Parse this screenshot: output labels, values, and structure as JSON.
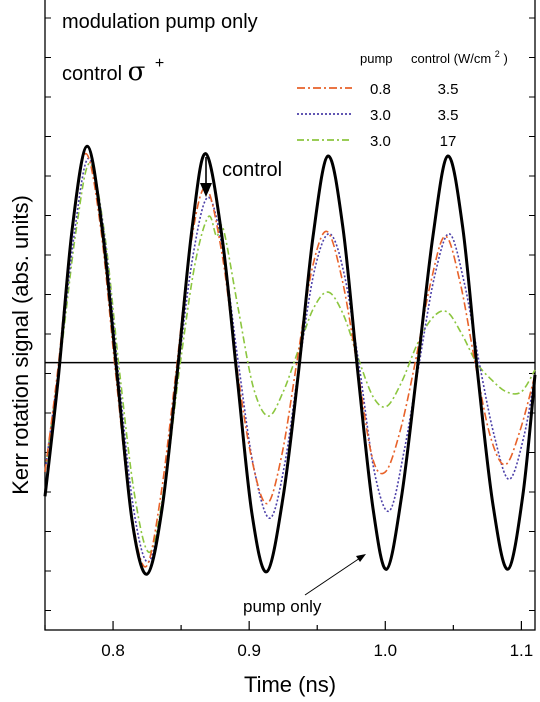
{
  "chart_data": {
    "type": "line",
    "xlabel": "Time (ns)",
    "ylabel": "Kerr rotation signal (abs. units)",
    "xlim": [
      0.75,
      1.11
    ],
    "ylim": [
      -1.1,
      1.5
    ],
    "x_ticks": [
      0.8,
      0.9,
      1.0,
      1.1
    ],
    "x_tick_labels": [
      "0.8",
      "0.9",
      "1.0",
      "1.1"
    ],
    "grid": false,
    "baseline_y": 0,
    "annotations": {
      "line1": "modulation pump  only",
      "line2_prefix": "control ",
      "sigma": "σ",
      "plus": "+",
      "control_arrow": "control",
      "pump_only": "pump only"
    },
    "legend": {
      "placement": "top-right",
      "header_pump": "pump",
      "header_control": "control (W/cm",
      "header_sup": "2",
      "header_close": ")",
      "entries": [
        {
          "pump": "0.8",
          "control": "3.5",
          "color": "#e8622a",
          "dash": "8,3,2,3"
        },
        {
          "pump": "3.0",
          "control": "3.5",
          "color": "#4b3fa8",
          "dash": "2,2"
        },
        {
          "pump": "3.0",
          "control": "17",
          "color": "#8cc63f",
          "dash": "7,3,2,3"
        }
      ]
    },
    "series": [
      {
        "name": "pump only",
        "color": "#000000",
        "style": "solid",
        "points": [
          [
            0.75,
            -0.55
          ],
          [
            0.76,
            -0.05
          ],
          [
            0.77,
            0.55
          ],
          [
            0.781,
            0.89
          ],
          [
            0.792,
            0.55
          ],
          [
            0.803,
            -0.05
          ],
          [
            0.814,
            -0.65
          ],
          [
            0.825,
            -0.87
          ],
          [
            0.836,
            -0.6
          ],
          [
            0.847,
            -0.05
          ],
          [
            0.858,
            0.55
          ],
          [
            0.868,
            0.86
          ],
          [
            0.88,
            0.52
          ],
          [
            0.891,
            -0.05
          ],
          [
            0.902,
            -0.62
          ],
          [
            0.913,
            -0.86
          ],
          [
            0.925,
            -0.55
          ],
          [
            0.936,
            -0.05
          ],
          [
            0.947,
            0.52
          ],
          [
            0.958,
            0.85
          ],
          [
            0.969,
            0.55
          ],
          [
            0.98,
            -0.05
          ],
          [
            0.991,
            -0.6
          ],
          [
            1.001,
            -0.85
          ],
          [
            1.012,
            -0.55
          ],
          [
            1.023,
            -0.05
          ],
          [
            1.035,
            0.52
          ],
          [
            1.046,
            0.85
          ],
          [
            1.057,
            0.55
          ],
          [
            1.068,
            -0.05
          ],
          [
            1.079,
            -0.58
          ],
          [
            1.09,
            -0.85
          ],
          [
            1.101,
            -0.55
          ],
          [
            1.11,
            -0.05
          ]
        ]
      },
      {
        "name": "",
        "color": "#e8622a",
        "style": "dashdot",
        "points": [
          [
            0.75,
            -0.45
          ],
          [
            0.76,
            0.0
          ],
          [
            0.77,
            0.55
          ],
          [
            0.78,
            0.86
          ],
          [
            0.791,
            0.55
          ],
          [
            0.802,
            -0.05
          ],
          [
            0.813,
            -0.6
          ],
          [
            0.824,
            -0.84
          ],
          [
            0.835,
            -0.55
          ],
          [
            0.846,
            -0.05
          ],
          [
            0.857,
            0.48
          ],
          [
            0.868,
            0.72
          ],
          [
            0.88,
            0.45
          ],
          [
            0.891,
            -0.02
          ],
          [
            0.902,
            -0.4
          ],
          [
            0.913,
            -0.58
          ],
          [
            0.924,
            -0.38
          ],
          [
            0.935,
            0.0
          ],
          [
            0.946,
            0.38
          ],
          [
            0.957,
            0.54
          ],
          [
            0.968,
            0.35
          ],
          [
            0.979,
            0.0
          ],
          [
            0.99,
            -0.38
          ],
          [
            1.0,
            -0.45
          ],
          [
            1.011,
            -0.28
          ],
          [
            1.022,
            0.0
          ],
          [
            1.033,
            0.32
          ],
          [
            1.044,
            0.52
          ],
          [
            1.055,
            0.33
          ],
          [
            1.066,
            0.0
          ],
          [
            1.077,
            -0.3
          ],
          [
            1.088,
            -0.42
          ],
          [
            1.099,
            -0.28
          ],
          [
            1.11,
            -0.05
          ]
        ]
      },
      {
        "name": "",
        "color": "#4b3fa8",
        "style": "dotted",
        "points": [
          [
            0.75,
            -0.45
          ],
          [
            0.761,
            0.02
          ],
          [
            0.772,
            0.55
          ],
          [
            0.782,
            0.84
          ],
          [
            0.793,
            0.55
          ],
          [
            0.804,
            -0.05
          ],
          [
            0.815,
            -0.6
          ],
          [
            0.826,
            -0.82
          ],
          [
            0.837,
            -0.55
          ],
          [
            0.848,
            -0.02
          ],
          [
            0.859,
            0.45
          ],
          [
            0.87,
            0.68
          ],
          [
            0.881,
            0.45
          ],
          [
            0.892,
            0.0
          ],
          [
            0.903,
            -0.42
          ],
          [
            0.915,
            -0.64
          ],
          [
            0.926,
            -0.42
          ],
          [
            0.937,
            0.0
          ],
          [
            0.948,
            0.38
          ],
          [
            0.959,
            0.53
          ],
          [
            0.97,
            0.36
          ],
          [
            0.981,
            -0.02
          ],
          [
            0.992,
            -0.45
          ],
          [
            1.003,
            -0.61
          ],
          [
            1.014,
            -0.36
          ],
          [
            1.025,
            0.0
          ],
          [
            1.036,
            0.35
          ],
          [
            1.047,
            0.53
          ],
          [
            1.058,
            0.33
          ],
          [
            1.069,
            0.0
          ],
          [
            1.08,
            -0.3
          ],
          [
            1.091,
            -0.48
          ],
          [
            1.102,
            -0.3
          ],
          [
            1.11,
            -0.05
          ]
        ]
      },
      {
        "name": "",
        "color": "#8cc63f",
        "style": "dashdot",
        "points": [
          [
            0.75,
            -0.45
          ],
          [
            0.762,
            0.05
          ],
          [
            0.773,
            0.55
          ],
          [
            0.783,
            0.82
          ],
          [
            0.794,
            0.52
          ],
          [
            0.805,
            -0.05
          ],
          [
            0.816,
            -0.55
          ],
          [
            0.827,
            -0.78
          ],
          [
            0.838,
            -0.5
          ],
          [
            0.849,
            -0.02
          ],
          [
            0.86,
            0.4
          ],
          [
            0.87,
            0.6
          ],
          [
            0.876,
            0.52
          ],
          [
            0.881,
            0.55
          ],
          [
            0.892,
            0.22
          ],
          [
            0.903,
            -0.1
          ],
          [
            0.914,
            -0.22
          ],
          [
            0.925,
            -0.12
          ],
          [
            0.936,
            0.05
          ],
          [
            0.947,
            0.22
          ],
          [
            0.958,
            0.29
          ],
          [
            0.969,
            0.2
          ],
          [
            0.98,
            0.02
          ],
          [
            0.991,
            -0.14
          ],
          [
            1.001,
            -0.18
          ],
          [
            1.012,
            -0.08
          ],
          [
            1.023,
            0.07
          ],
          [
            1.034,
            0.18
          ],
          [
            1.045,
            0.21
          ],
          [
            1.056,
            0.12
          ],
          [
            1.067,
            0.0
          ],
          [
            1.078,
            -0.07
          ],
          [
            1.089,
            -0.12
          ],
          [
            1.1,
            -0.12
          ],
          [
            1.11,
            -0.03
          ]
        ]
      }
    ]
  }
}
